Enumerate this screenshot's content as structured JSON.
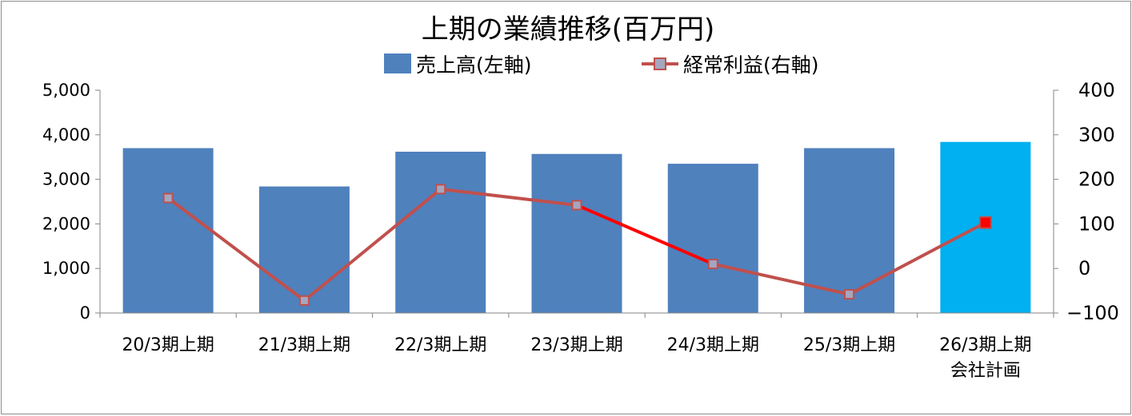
{
  "chart_data": {
    "type": "bar",
    "title": "上期の業績推移(百万円)",
    "categories": [
      [
        "20/3期上期"
      ],
      [
        "21/3期上期"
      ],
      [
        "22/3期上期"
      ],
      [
        "23/3期上期"
      ],
      [
        "24/3期上期"
      ],
      [
        "25/3期上期"
      ],
      [
        "26/3期上期",
        "会社計画"
      ]
    ],
    "series": [
      {
        "name": "売上高(左軸)",
        "kind": "bar",
        "axis": "left",
        "color": "#4f81bd",
        "highlight_color": "#00b0f0",
        "highlight_index": 6,
        "values": [
          3700,
          2840,
          3620,
          3570,
          3350,
          3700,
          3840
        ]
      },
      {
        "name": "経常利益(右軸)",
        "kind": "line",
        "axis": "right",
        "color": "#c0504d",
        "segment_highlight_color": "#ff0000",
        "highlight_segment": [
          3,
          4
        ],
        "marker_color": "#a6a6bf",
        "highlight_marker_color": "#ff0000",
        "highlight_index": 6,
        "values": [
          158,
          -72,
          178,
          142,
          10,
          -58,
          103
        ]
      }
    ],
    "y_left": {
      "ylim": [
        0,
        5000
      ],
      "ticks": [
        "0",
        "1,000",
        "2,000",
        "3,000",
        "4,000",
        "5,000"
      ]
    },
    "y_right": {
      "ylim": [
        -100,
        400
      ],
      "ticks": [
        "−100",
        "0",
        "100",
        "200",
        "300",
        "400"
      ],
      "negative_color": "#ff0000"
    },
    "grid": false,
    "legend_position": "top"
  }
}
